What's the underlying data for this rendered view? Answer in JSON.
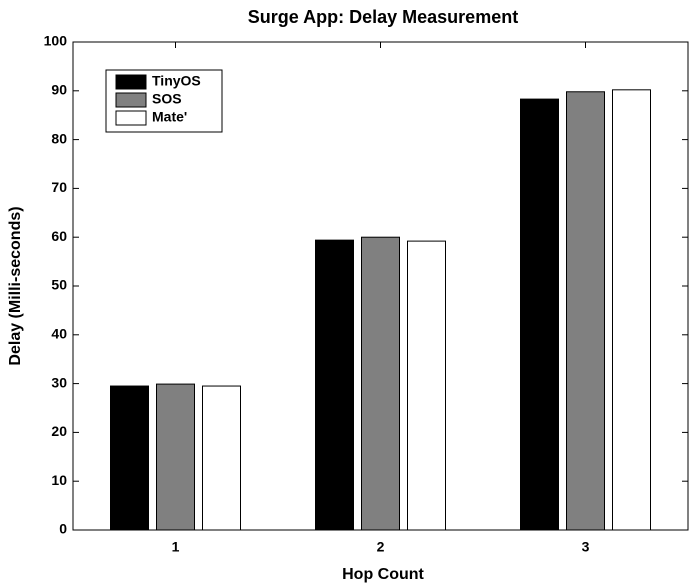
{
  "chart_data": {
    "type": "bar",
    "title": "Surge App: Delay Measurement",
    "x_label": "Hop Count",
    "y_label": "Delay (Milli-seconds)",
    "categories": [
      "1",
      "2",
      "3"
    ],
    "series": [
      {
        "name": "TinyOS",
        "color": "#000000",
        "values": [
          29.5,
          59.4,
          88.3
        ]
      },
      {
        "name": "SOS",
        "color": "#808080",
        "values": [
          29.9,
          60.0,
          89.8
        ]
      },
      {
        "name": "Mate'",
        "color": "#ffffff",
        "values": [
          29.5,
          59.2,
          90.2
        ]
      }
    ],
    "ylim": [
      0,
      100
    ],
    "yticks": [
      0,
      10,
      20,
      30,
      40,
      50,
      60,
      70,
      80,
      90,
      100
    ],
    "grid": false,
    "legend": "upper left"
  }
}
